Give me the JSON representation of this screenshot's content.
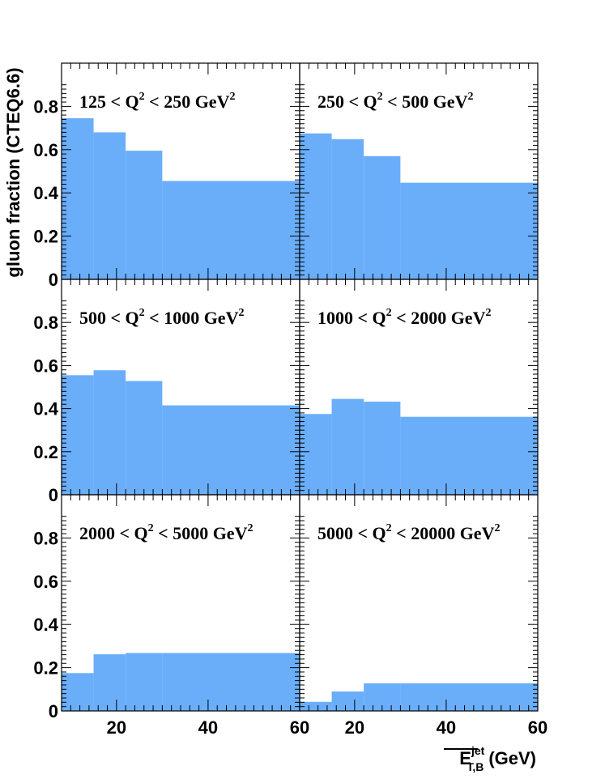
{
  "chart_data": {
    "type": "bar",
    "ylabel": "gluon fraction (CTEQ6.6)",
    "xlabel": {
      "symbol": "E",
      "superscript": "jet",
      "subscript": "T,B",
      "unit": "(GeV)"
    },
    "xlim": [
      8,
      60
    ],
    "ylim": [
      0,
      1
    ],
    "x_ticks": [
      "20",
      "40",
      "60"
    ],
    "y_ticks": [
      "0",
      "0.2",
      "0.4",
      "0.6",
      "0.8"
    ],
    "color": "#6aaefa",
    "bin_edges": [
      8,
      15,
      22,
      30,
      60
    ],
    "panels": [
      {
        "label_pre": "125 < Q",
        "label_sup": "2",
        "label_post": " < 250 GeV",
        "label_sup2": "2",
        "values": [
          0.745,
          0.68,
          0.595,
          0.455
        ],
        "edges": [
          8,
          15,
          22,
          30,
          60
        ]
      },
      {
        "label_pre": "250 < Q",
        "label_sup": "2",
        "label_post": " < 500 GeV",
        "label_sup2": "2",
        "values": [
          0.675,
          0.648,
          0.57,
          0.447
        ],
        "edges": [
          8,
          15,
          22,
          30,
          60
        ]
      },
      {
        "label_pre": "500 < Q",
        "label_sup": "2",
        "label_post": " < 1000 GeV",
        "label_sup2": "2",
        "values": [
          0.555,
          0.578,
          0.528,
          0.415
        ],
        "edges": [
          8,
          15,
          22,
          30,
          60
        ]
      },
      {
        "label_pre": "1000 < Q",
        "label_sup": "2",
        "label_post": " < 2000 GeV",
        "label_sup2": "2",
        "values": [
          0.375,
          0.445,
          0.432,
          0.362
        ],
        "edges": [
          8,
          15,
          22,
          30,
          60
        ]
      },
      {
        "label_pre": "2000 < Q",
        "label_sup": "2",
        "label_post": " < 5000 GeV",
        "label_sup2": "2",
        "values": [
          0.175,
          0.262,
          0.268,
          0.268
        ],
        "edges": [
          8,
          15,
          22,
          30,
          60
        ]
      },
      {
        "label_pre": "5000 < Q",
        "label_sup": "2",
        "label_post": " < 20000 GeV",
        "label_sup2": "2",
        "values": [
          0.042,
          0.09,
          0.128,
          0.128
        ],
        "edges": [
          8,
          15,
          22,
          30,
          60
        ]
      }
    ]
  }
}
